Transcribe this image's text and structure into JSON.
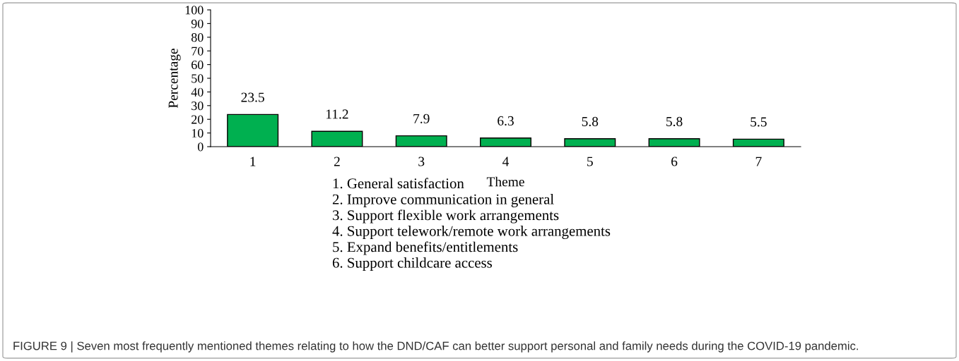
{
  "chart_data": {
    "type": "bar",
    "xlabel": "Theme",
    "ylabel": "Percentage",
    "categories": [
      "1",
      "2",
      "3",
      "4",
      "5",
      "6",
      "7"
    ],
    "values": [
      23.5,
      11.2,
      7.9,
      6.3,
      5.8,
      5.8,
      5.5
    ],
    "color": "#00b050",
    "data_labels": true,
    "ylim": [
      0,
      100
    ],
    "yticks": [
      0,
      10,
      20,
      30,
      40,
      50,
      60,
      70,
      80,
      90,
      100
    ],
    "grid": false,
    "legend": false,
    "annotations": [
      "1. General satisfaction",
      "2. Improve communication in general",
      "3. Support flexible work arrangements",
      "4. Support telework/remote work arrangements",
      "5. Expand benefits/entitlements",
      "6. Support childcare access",
      "FIGURE 9 | Seven most frequently mentioned themes relating to how the DND/CAF can better support personal and family needs during the COVID-19 pandemic."
    ]
  }
}
